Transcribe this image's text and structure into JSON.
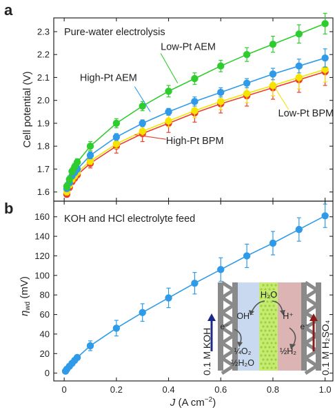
{
  "panels": {
    "a": {
      "letter": "a"
    },
    "b": {
      "letter": "b"
    }
  },
  "chart_data": [
    {
      "type": "line",
      "panel": "a",
      "title": "Pure-water electrolysis",
      "xlabel": "",
      "ylabel": "Cell potential (V)",
      "xlim": [
        -0.04,
        1.03
      ],
      "ylim": [
        1.56,
        2.36
      ],
      "xticks": [
        0,
        0.2,
        0.4,
        0.6,
        0.8,
        1.0
      ],
      "yticks": [
        1.6,
        1.7,
        1.8,
        1.9,
        2.0,
        2.1,
        2.2,
        2.3
      ],
      "ytick_labels": [
        "1.6",
        "1.7",
        "1.8",
        "1.9",
        "2.0",
        "2.1",
        "2.2",
        "2.3"
      ],
      "grid": false,
      "x": [
        0.01,
        0.02,
        0.03,
        0.04,
        0.05,
        0.1,
        0.2,
        0.3,
        0.4,
        0.5,
        0.6,
        0.7,
        0.8,
        0.9,
        1.0
      ],
      "series": [
        {
          "name": "Low-Pt AEM",
          "color": "#2ecc2e",
          "values": [
            1.625,
            1.655,
            1.69,
            1.71,
            1.73,
            1.8,
            1.9,
            1.975,
            2.04,
            2.095,
            2.15,
            2.2,
            2.245,
            2.29,
            2.335
          ],
          "errors": [
            0.015,
            0.015,
            0.015,
            0.015,
            0.015,
            0.02,
            0.02,
            0.02,
            0.025,
            0.025,
            0.025,
            0.03,
            0.035,
            0.04,
            0.045
          ]
        },
        {
          "name": "High-Pt AEM",
          "color": "#2f9be8",
          "values": [
            1.615,
            1.64,
            1.67,
            1.685,
            1.7,
            1.76,
            1.84,
            1.9,
            1.95,
            1.995,
            2.035,
            2.075,
            2.115,
            2.15,
            2.185
          ],
          "errors": [
            0.012,
            0.012,
            0.012,
            0.012,
            0.012,
            0.015,
            0.015,
            0.015,
            0.015,
            0.02,
            0.02,
            0.02,
            0.025,
            0.03,
            0.04
          ]
        },
        {
          "name": "Low-Pt BPM",
          "color": "#f5e400",
          "values": [
            1.6,
            1.63,
            1.655,
            1.67,
            1.685,
            1.735,
            1.81,
            1.865,
            1.91,
            1.955,
            1.995,
            2.03,
            2.065,
            2.1,
            2.135
          ],
          "errors": [
            0.012,
            0.012,
            0.012,
            0.012,
            0.012,
            0.015,
            0.02,
            0.02,
            0.025,
            0.03,
            0.035,
            0.04,
            0.045,
            0.05,
            0.055
          ]
        },
        {
          "name": "High-Pt BPM",
          "color": "#ee3c2b",
          "values": [
            1.59,
            1.62,
            1.645,
            1.66,
            1.675,
            1.725,
            1.8,
            1.855,
            1.9,
            1.945,
            1.985,
            2.02,
            2.055,
            2.09,
            2.125
          ],
          "errors": [
            0.012,
            0.012,
            0.012,
            0.012,
            0.012,
            0.02,
            0.03,
            0.035,
            0.04,
            0.04,
            0.04,
            0.045,
            0.05,
            0.055,
            0.06
          ]
        }
      ],
      "labels": [
        {
          "text": "Low-Pt AEM",
          "series": "Low-Pt AEM",
          "at": [
            0.37,
            2.22
          ]
        },
        {
          "text": "High-Pt AEM",
          "series": "High-Pt AEM",
          "at": [
            0.06,
            2.085
          ]
        },
        {
          "text": "Low-Pt BPM",
          "series": "Low-Pt BPM",
          "at": [
            0.82,
            1.93
          ]
        },
        {
          "text": "High-Pt BPM",
          "series": "High-Pt BPM",
          "at": [
            0.39,
            1.81
          ]
        }
      ]
    },
    {
      "type": "line",
      "panel": "b",
      "title": "KOH and HCl electrolyte feed",
      "xlabel": "J (A cm−2)",
      "ylabel": "ηwd (mV)",
      "xlim": [
        -0.04,
        1.03
      ],
      "ylim": [
        -8,
        176
      ],
      "xticks": [
        0,
        0.2,
        0.4,
        0.6,
        0.8,
        1.0
      ],
      "xtick_labels": [
        "0",
        "0.2",
        "0.4",
        "0.6",
        "0.8",
        "1.0"
      ],
      "yticks": [
        0,
        20,
        40,
        60,
        80,
        100,
        120,
        140,
        160
      ],
      "ytick_labels": [
        "0",
        "20",
        "40",
        "60",
        "80",
        "100",
        "120",
        "140",
        "160"
      ],
      "grid": false,
      "x": [
        0.005,
        0.01,
        0.02,
        0.03,
        0.04,
        0.05,
        0.1,
        0.2,
        0.3,
        0.4,
        0.5,
        0.6,
        0.7,
        0.8,
        0.9,
        1.0
      ],
      "series": [
        {
          "color": "#2f9be8",
          "values": [
            2,
            4,
            7,
            10,
            13,
            16,
            28,
            46,
            62,
            77,
            92,
            106,
            120,
            133,
            147,
            161
          ],
          "errors": [
            1,
            1,
            1,
            1,
            1,
            2,
            5,
            8,
            9,
            10,
            11,
            12,
            12,
            12,
            12,
            12
          ]
        }
      ],
      "inset": {
        "left_label": "0.1 M KOH",
        "right_label": "0.1 M H₂SO₄",
        "water": "H₂O",
        "hydroxide": "OH⁻",
        "proton": "H⁺",
        "electron_left": "e⁻",
        "electron_right": "e⁻",
        "anode_product_1": "¼O₂",
        "anode_product_2": "½H₂O",
        "cathode_product": "½H₂",
        "colors": {
          "frame": "#8a8a8a",
          "left_layer": "#c9daf0",
          "membrane": "#c7ea74",
          "right_layer": "#dcb4b4",
          "left_text": "#1a2a8a",
          "right_text": "#8b1a1a"
        }
      }
    }
  ]
}
